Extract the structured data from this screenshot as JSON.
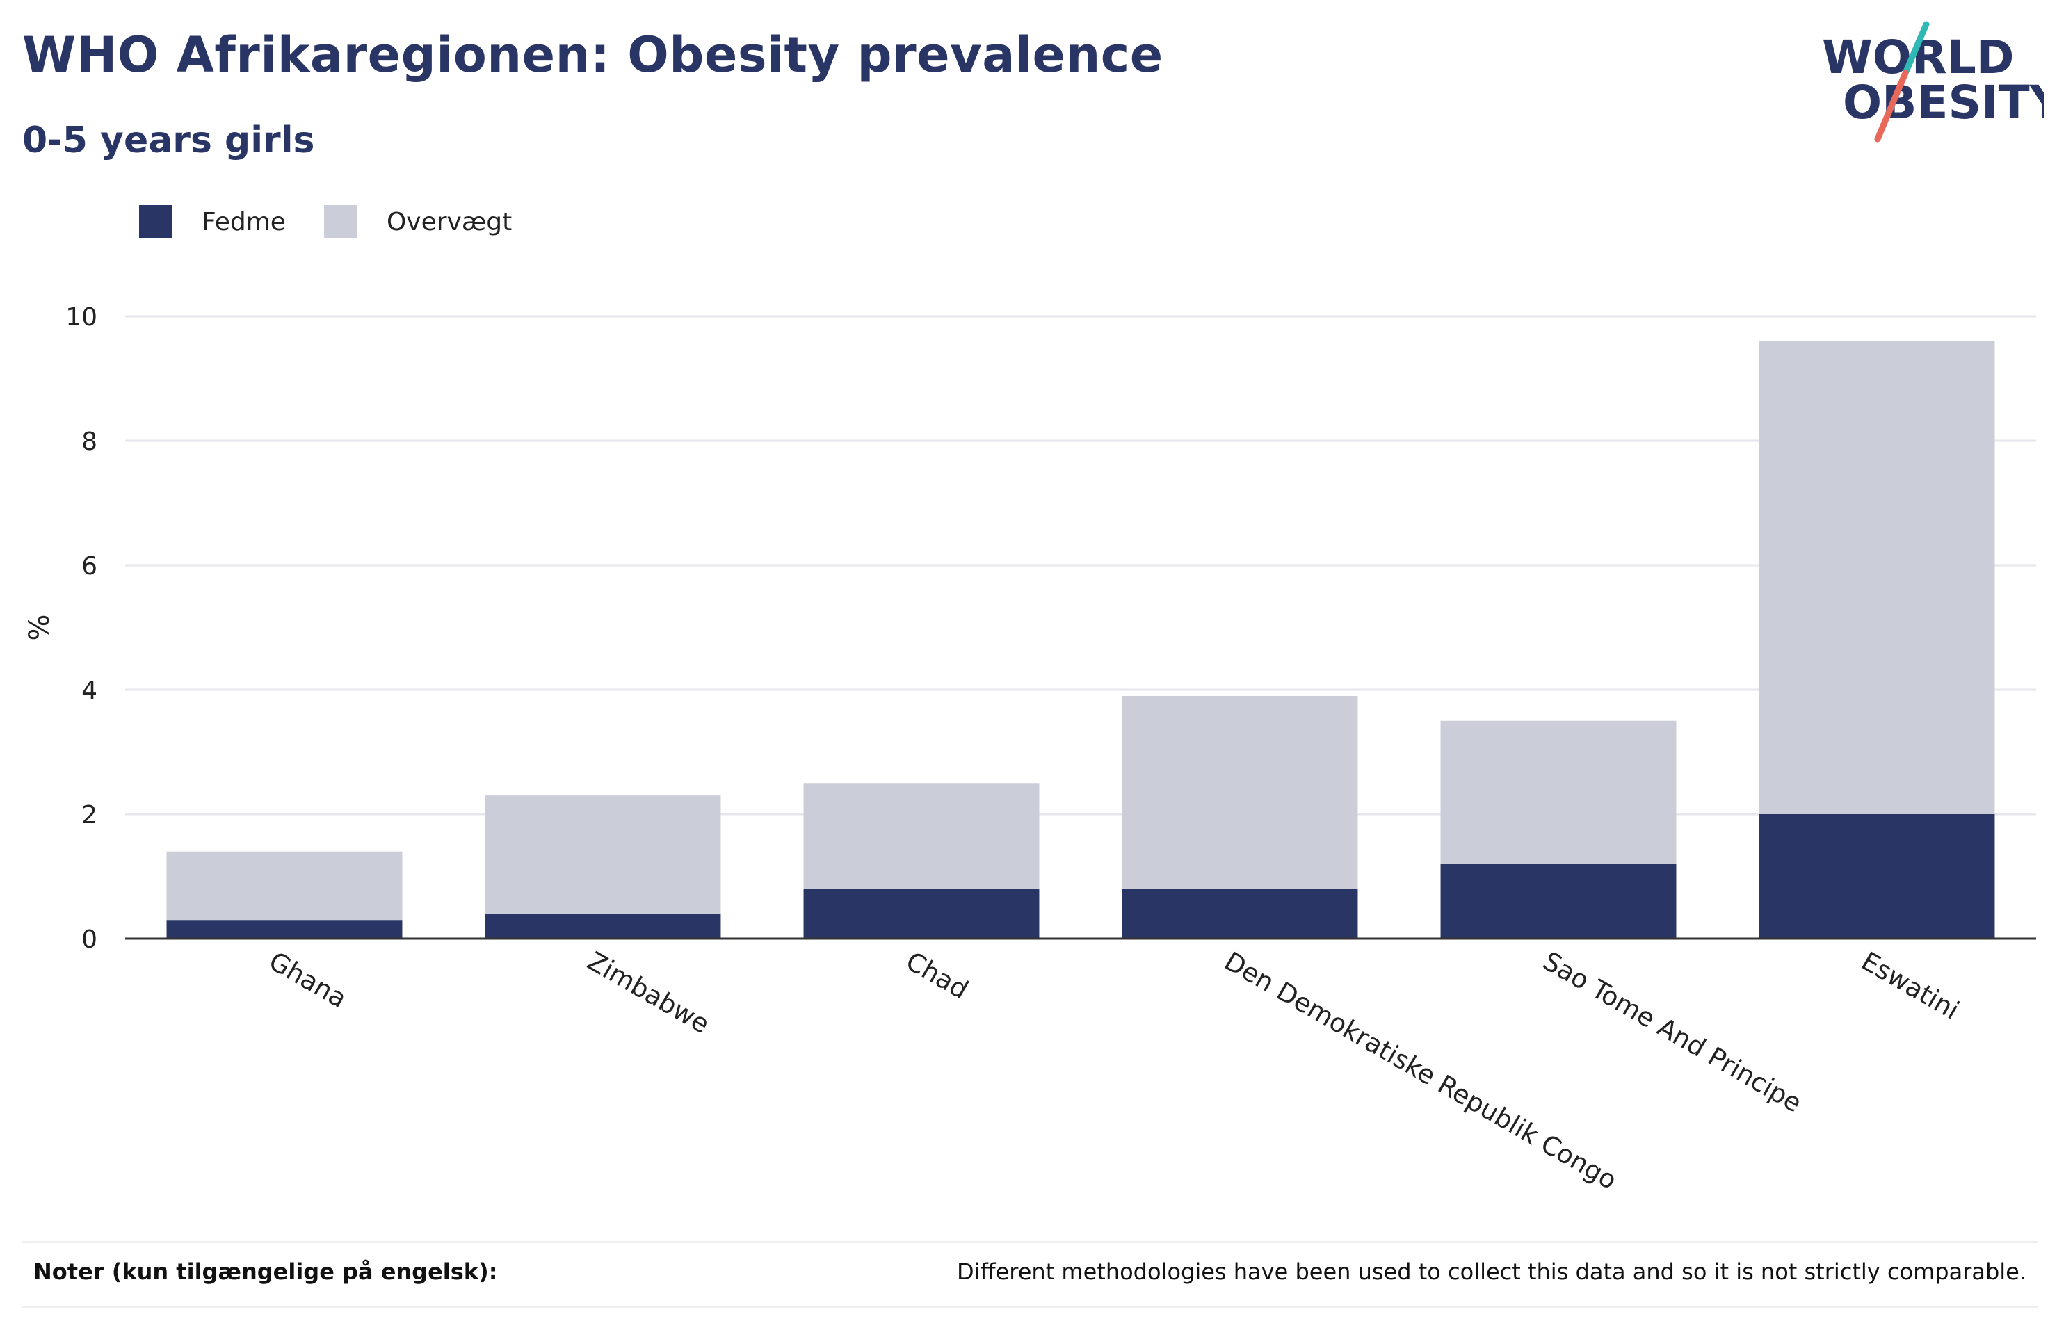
{
  "header": {
    "title": "WHO Afrikaregionen: Obesity prevalence",
    "subtitle": "0-5 years girls"
  },
  "logo": {
    "line1": "WORLD",
    "line2": "OBESITY",
    "icon": "world-obesity-logo"
  },
  "colors": {
    "fedme": "#293564",
    "overvaegt": "#cbcdd8",
    "accent_teal": "#2fb8b4",
    "accent_red": "#e8685a"
  },
  "legend": [
    {
      "label": "Fedme",
      "color": "#293564"
    },
    {
      "label": "Overvægt",
      "color": "#cbcdd8"
    }
  ],
  "chart_data": {
    "type": "bar",
    "stacked": true,
    "categories": [
      "Ghana",
      "Zimbabwe",
      "Chad",
      "Den Demokratiske Republik Congo",
      "Sao Tome And Principe",
      "Eswatini"
    ],
    "series": [
      {
        "name": "Fedme",
        "values": [
          0.3,
          0.4,
          0.8,
          0.8,
          1.2,
          2.0
        ]
      },
      {
        "name": "Overvægt",
        "values": [
          1.1,
          1.9,
          1.7,
          3.1,
          2.3,
          7.6
        ]
      }
    ],
    "totals": [
      1.4,
      2.3,
      2.5,
      3.9,
      3.5,
      9.6
    ],
    "ylabel": "%",
    "ylim": [
      0,
      10
    ],
    "yticks": [
      0,
      2,
      4,
      6,
      8,
      10
    ],
    "grid": true,
    "legend_position": "top-left"
  },
  "notes": {
    "label": "Noter (kun tilgængelige på engelsk):",
    "text": "Different methodologies have been used to collect this data and so it is not strictly comparable."
  }
}
